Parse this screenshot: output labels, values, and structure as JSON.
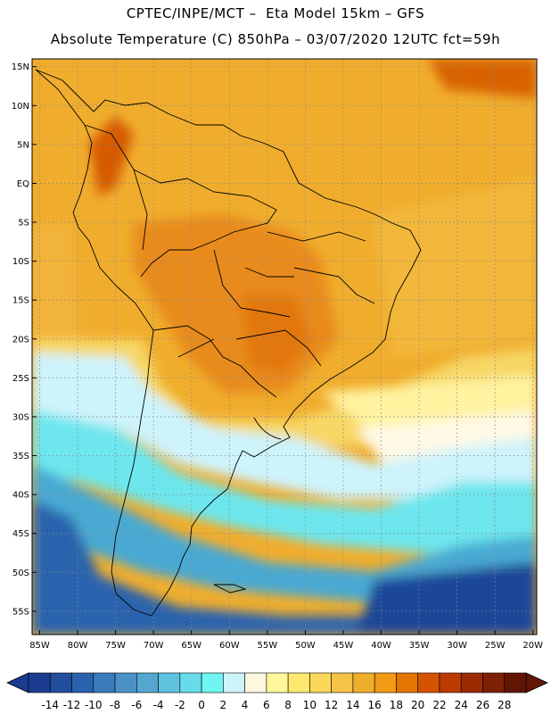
{
  "header": {
    "line1": "CPTEC/INPE/MCT –  Eta Model 15km – GFS",
    "line2": "Absolute Temperature (C) 850hPa – 03/07/2020 12UTC fct=59h"
  },
  "map": {
    "lon_range": [
      -86,
      -19.5
    ],
    "lat_range": [
      -58,
      16
    ],
    "lat_ticks": [
      {
        "lat": 15,
        "label": "15N"
      },
      {
        "lat": 10,
        "label": "10N"
      },
      {
        "lat": 5,
        "label": "5N"
      },
      {
        "lat": 0,
        "label": "EQ"
      },
      {
        "lat": -5,
        "label": "5S"
      },
      {
        "lat": -10,
        "label": "10S"
      },
      {
        "lat": -15,
        "label": "15S"
      },
      {
        "lat": -20,
        "label": "20S"
      },
      {
        "lat": -25,
        "label": "25S"
      },
      {
        "lat": -30,
        "label": "30S"
      },
      {
        "lat": -35,
        "label": "35S"
      },
      {
        "lat": -40,
        "label": "40S"
      },
      {
        "lat": -45,
        "label": "45S"
      },
      {
        "lat": -50,
        "label": "50S"
      },
      {
        "lat": -55,
        "label": "55S"
      }
    ],
    "lon_ticks": [
      {
        "lon": -85,
        "label": "85W"
      },
      {
        "lon": -80,
        "label": "80W"
      },
      {
        "lon": -75,
        "label": "75W"
      },
      {
        "lon": -70,
        "label": "70W"
      },
      {
        "lon": -65,
        "label": "65W"
      },
      {
        "lon": -60,
        "label": "60W"
      },
      {
        "lon": -55,
        "label": "55W"
      },
      {
        "lon": -50,
        "label": "50W"
      },
      {
        "lon": -45,
        "label": "45W"
      },
      {
        "lon": -40,
        "label": "40W"
      },
      {
        "lon": -35,
        "label": "35W"
      },
      {
        "lon": -30,
        "label": "30W"
      },
      {
        "lon": -25,
        "label": "25W"
      },
      {
        "lon": -20,
        "label": "20W"
      }
    ]
  },
  "colorbar": {
    "labels": [
      "-14",
      "-12",
      "-10",
      "-8",
      "-6",
      "-4",
      "-2",
      "0",
      "2",
      "4",
      "6",
      "8",
      "10",
      "12",
      "14",
      "16",
      "18",
      "20",
      "22",
      "24",
      "26",
      "28"
    ],
    "colors": [
      "#1b3b8f",
      "#214f9e",
      "#2a63ad",
      "#3b7abb",
      "#4c91c6",
      "#55a6d1",
      "#5fc3df",
      "#66dce8",
      "#6ff5f2",
      "#cdf3fb",
      "#fff8e0",
      "#fff79a",
      "#ffe870",
      "#fcd85a",
      "#f5c346",
      "#efad2c",
      "#f19a16",
      "#e57500",
      "#d55200",
      "#bc3a00",
      "#9c2a03",
      "#7d2003",
      "#611503"
    ],
    "low_color": "#1b3b8f",
    "high_color": "#611503"
  }
}
